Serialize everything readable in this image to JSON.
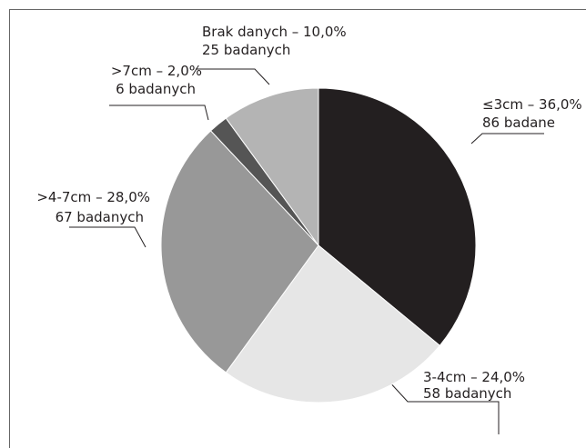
{
  "chart_data": {
    "type": "pie",
    "categories": [
      "≤3cm",
      "3-4cm",
      ">4-7cm",
      ">7cm",
      "Brak danych"
    ],
    "values": [
      36,
      24,
      28,
      2,
      10
    ],
    "value_labels": [
      "– 36,0%",
      "– 24,0%",
      "– 28,0%",
      "– 2,0%",
      "– 10,0%"
    ],
    "counts": [
      86,
      58,
      67,
      6,
      25
    ],
    "count_labels": [
      "86 badane",
      "58 badanych",
      "67 badanych",
      "6 badanych",
      "25 badanych"
    ],
    "colors": [
      "#231f20",
      "#e6e6e6",
      "#989898",
      "#555555",
      "#b4b4b4"
    ]
  }
}
